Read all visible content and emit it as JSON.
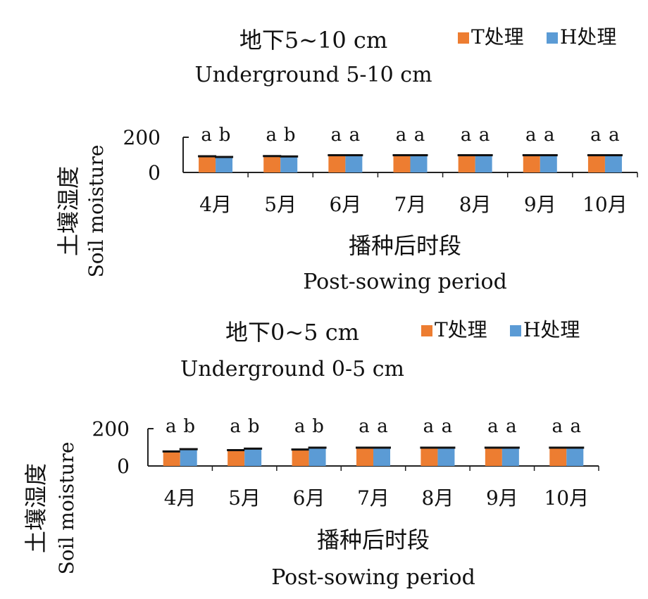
{
  "chart_data": [
    {
      "type": "bar",
      "title": "地下5~10 cm",
      "subtitle": "Underground  5-10 cm",
      "xlabel": "播种后时段",
      "xlabel_en": "Post-sowing period",
      "ylabel": "土壤湿度",
      "ylabel_en": "Soil moisture",
      "ylim": [
        0,
        200
      ],
      "yticks": [
        "200",
        "0"
      ],
      "categories": [
        "4月",
        "5月",
        "6月",
        "7月",
        "8月",
        "9月",
        "10月"
      ],
      "series": [
        {
          "name": "T处理",
          "color": "#ED7D31",
          "values": [
            92,
            93,
            98,
            98,
            98,
            98,
            98
          ]
        },
        {
          "name": "H处理",
          "color": "#5B9BD5",
          "values": [
            88,
            91,
            98,
            98,
            98,
            98,
            98
          ]
        }
      ],
      "significance": [
        [
          "a",
          "b"
        ],
        [
          "a",
          "b"
        ],
        [
          "a",
          "a"
        ],
        [
          "a",
          "a"
        ],
        [
          "a",
          "a"
        ],
        [
          "a",
          "a"
        ],
        [
          "a",
          "a"
        ]
      ],
      "legend_position": "top-right",
      "grid": false
    },
    {
      "type": "bar",
      "title": "地下0~5 cm",
      "subtitle": "Underground  0-5 cm",
      "xlabel": "播种后时段",
      "xlabel_en": "Post-sowing period",
      "ylabel": "土壤湿度",
      "ylabel_en": "Soil moisture",
      "ylim": [
        0,
        200
      ],
      "yticks": [
        "200",
        "0"
      ],
      "categories": [
        "4月",
        "5月",
        "6月",
        "7月",
        "8月",
        "9月",
        "10月"
      ],
      "series": [
        {
          "name": "T处理",
          "color": "#ED7D31",
          "values": [
            78,
            85,
            88,
            98,
            98,
            98,
            98
          ]
        },
        {
          "name": "H处理",
          "color": "#5B9BD5",
          "values": [
            90,
            93,
            98,
            98,
            98,
            98,
            98
          ]
        }
      ],
      "significance": [
        [
          "a",
          "b"
        ],
        [
          "a",
          "b"
        ],
        [
          "a",
          "b"
        ],
        [
          "a",
          "a"
        ],
        [
          "a",
          "a"
        ],
        [
          "a",
          "a"
        ],
        [
          "a",
          "a"
        ]
      ],
      "legend_position": "top-right",
      "grid": false
    }
  ]
}
